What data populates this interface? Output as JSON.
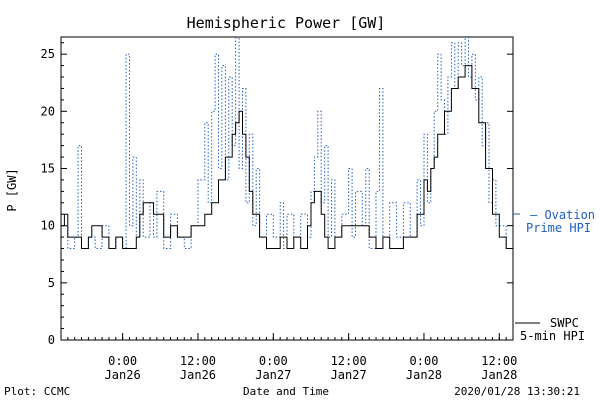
{
  "chart_data": {
    "type": "line",
    "title": "Hemispheric Power [GW]",
    "ylabel": "P [GW]",
    "xlabel": "Date and Time",
    "ylim": [
      0,
      26.5
    ],
    "xlim": [
      0,
      66
    ],
    "yticks": [
      0,
      5,
      10,
      15,
      20,
      25
    ],
    "xticks": [
      {
        "x": 9,
        "time": "0:00",
        "date": "Jan26"
      },
      {
        "x": 20,
        "time": "12:00",
        "date": "Jan26"
      },
      {
        "x": 31,
        "time": "0:00",
        "date": "Jan27"
      },
      {
        "x": 42,
        "time": "12:00",
        "date": "Jan27"
      },
      {
        "x": 53,
        "time": "0:00",
        "date": "Jan28"
      },
      {
        "x": 64,
        "time": "12:00",
        "date": "Jan28"
      }
    ],
    "grid": false,
    "legend": "right",
    "series": [
      {
        "name": "SWPC 5-min HPI",
        "color": "#000000",
        "style": "solid",
        "points": [
          [
            0,
            10
          ],
          [
            0.5,
            11
          ],
          [
            1,
            9
          ],
          [
            2,
            9
          ],
          [
            3,
            8
          ],
          [
            4,
            9
          ],
          [
            4.5,
            10
          ],
          [
            5,
            10
          ],
          [
            6,
            9
          ],
          [
            7,
            8
          ],
          [
            8,
            9
          ],
          [
            9,
            8
          ],
          [
            10,
            8
          ],
          [
            11,
            9
          ],
          [
            11.5,
            11
          ],
          [
            12,
            12
          ],
          [
            12.5,
            12
          ],
          [
            13,
            12
          ],
          [
            13.5,
            11
          ],
          [
            14,
            11
          ],
          [
            15,
            9
          ],
          [
            16,
            10
          ],
          [
            17,
            9
          ],
          [
            18,
            9
          ],
          [
            19,
            10
          ],
          [
            20,
            10
          ],
          [
            21,
            11
          ],
          [
            22,
            12
          ],
          [
            23,
            14
          ],
          [
            24,
            16
          ],
          [
            25,
            18
          ],
          [
            25.5,
            19
          ],
          [
            26,
            20
          ],
          [
            26.5,
            18
          ],
          [
            27,
            16
          ],
          [
            27.5,
            13
          ],
          [
            28,
            11
          ],
          [
            29,
            9
          ],
          [
            30,
            8
          ],
          [
            31,
            8
          ],
          [
            32,
            9
          ],
          [
            33,
            8
          ],
          [
            34,
            9
          ],
          [
            35,
            8
          ],
          [
            36,
            10
          ],
          [
            36.5,
            12
          ],
          [
            37,
            13
          ],
          [
            37.5,
            13
          ],
          [
            38,
            11
          ],
          [
            38.5,
            9
          ],
          [
            39,
            8
          ],
          [
            40,
            9
          ],
          [
            41,
            10
          ],
          [
            42,
            10
          ],
          [
            43,
            10
          ],
          [
            44,
            10
          ],
          [
            45,
            9
          ],
          [
            46,
            8
          ],
          [
            47,
            9
          ],
          [
            48,
            8
          ],
          [
            49,
            8
          ],
          [
            50,
            9
          ],
          [
            51,
            9
          ],
          [
            52,
            11
          ],
          [
            53,
            14
          ],
          [
            53.5,
            13
          ],
          [
            54,
            15
          ],
          [
            54.5,
            16
          ],
          [
            55,
            18
          ],
          [
            56,
            20
          ],
          [
            57,
            22
          ],
          [
            58,
            23
          ],
          [
            59,
            24
          ],
          [
            60,
            22
          ],
          [
            61,
            19
          ],
          [
            62,
            15
          ],
          [
            63,
            11
          ],
          [
            64,
            9
          ],
          [
            65,
            8
          ],
          [
            66,
            8
          ]
        ]
      },
      {
        "name": "Ovation Prime HPI",
        "color": "#1f5ebf",
        "style": "dotted",
        "points": [
          [
            0,
            10
          ],
          [
            1,
            8
          ],
          [
            2,
            9
          ],
          [
            2.5,
            17
          ],
          [
            3,
            8
          ],
          [
            4,
            9
          ],
          [
            5,
            8
          ],
          [
            6,
            10
          ],
          [
            7,
            8
          ],
          [
            8,
            9
          ],
          [
            9,
            8
          ],
          [
            9.5,
            25
          ],
          [
            10,
            10
          ],
          [
            10.5,
            16
          ],
          [
            11,
            9
          ],
          [
            11.5,
            14
          ],
          [
            12,
            9
          ],
          [
            13,
            12
          ],
          [
            13.5,
            9
          ],
          [
            14,
            13
          ],
          [
            15,
            8
          ],
          [
            16,
            11
          ],
          [
            17,
            9
          ],
          [
            18,
            8
          ],
          [
            19,
            10
          ],
          [
            20,
            14
          ],
          [
            21,
            19
          ],
          [
            21.5,
            12
          ],
          [
            22,
            20
          ],
          [
            22.5,
            25
          ],
          [
            23,
            15
          ],
          [
            23.5,
            24
          ],
          [
            24,
            14
          ],
          [
            24.5,
            23
          ],
          [
            25,
            17
          ],
          [
            25.5,
            27
          ],
          [
            26,
            15
          ],
          [
            26.5,
            22
          ],
          [
            27,
            12
          ],
          [
            27.5,
            18
          ],
          [
            28,
            10
          ],
          [
            28.5,
            15
          ],
          [
            29,
            9
          ],
          [
            30,
            11
          ],
          [
            31,
            9
          ],
          [
            32,
            12
          ],
          [
            32.5,
            8
          ],
          [
            33,
            11
          ],
          [
            34,
            9
          ],
          [
            35,
            11
          ],
          [
            36,
            9
          ],
          [
            36.5,
            13
          ],
          [
            37,
            16
          ],
          [
            37.5,
            20
          ],
          [
            38,
            12
          ],
          [
            38.5,
            17
          ],
          [
            39,
            9
          ],
          [
            39.5,
            14
          ],
          [
            40,
            9
          ],
          [
            41,
            11
          ],
          [
            42,
            15
          ],
          [
            42.5,
            9
          ],
          [
            43,
            13
          ],
          [
            44,
            10
          ],
          [
            44.5,
            15
          ],
          [
            45,
            8
          ],
          [
            46,
            13
          ],
          [
            46.5,
            22
          ],
          [
            47,
            9
          ],
          [
            48,
            12
          ],
          [
            49,
            9
          ],
          [
            50,
            12
          ],
          [
            51,
            9
          ],
          [
            52,
            14
          ],
          [
            52.5,
            10
          ],
          [
            53,
            18
          ],
          [
            53.5,
            12
          ],
          [
            54,
            15
          ],
          [
            54.5,
            20
          ],
          [
            55,
            25
          ],
          [
            55.5,
            21
          ],
          [
            56,
            18
          ],
          [
            56.5,
            23
          ],
          [
            57,
            26
          ],
          [
            57.5,
            22
          ],
          [
            58,
            26
          ],
          [
            58.5,
            24
          ],
          [
            59,
            27
          ],
          [
            59.5,
            23
          ],
          [
            60,
            25
          ],
          [
            60.5,
            21
          ],
          [
            61,
            23
          ],
          [
            61.5,
            17
          ],
          [
            62,
            19
          ],
          [
            62.5,
            12
          ],
          [
            63,
            14
          ],
          [
            63.5,
            10
          ],
          [
            64,
            10
          ],
          [
            65,
            8
          ],
          [
            66,
            8
          ]
        ]
      }
    ],
    "legend_labels": [
      {
        "text": "– Ovation",
        "color": "#1f5ebf"
      },
      {
        "text": "Prime HPI",
        "color": "#1f5ebf"
      },
      {
        "text": "SWPC",
        "color": "#000000"
      },
      {
        "text": "5-min HPI",
        "color": "#000000"
      }
    ]
  },
  "footer": {
    "left": "Plot: CCMC",
    "right": "2020/01/28 13:30:21"
  }
}
